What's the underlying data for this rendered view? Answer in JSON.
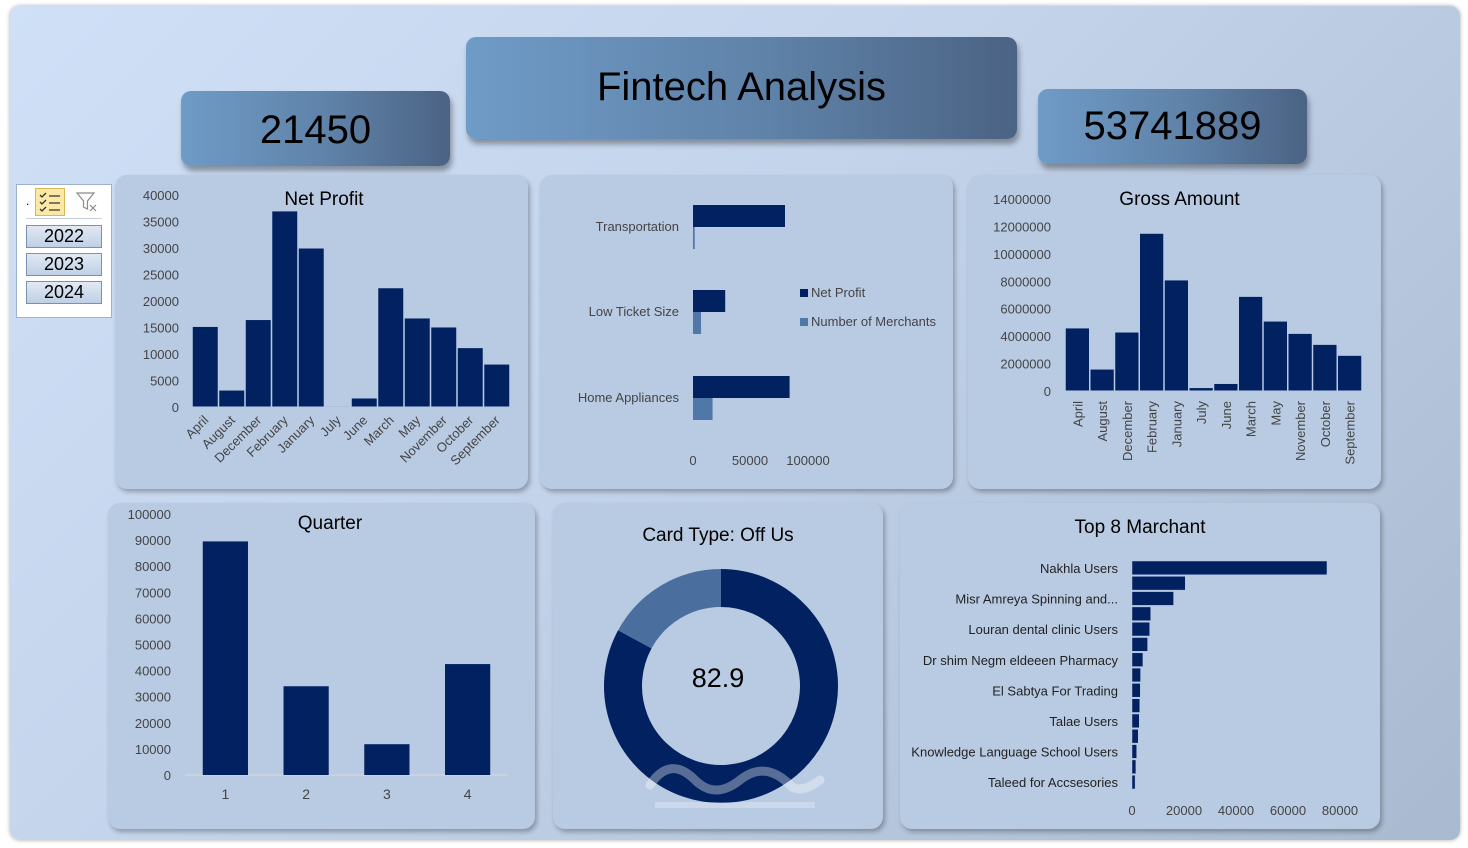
{
  "header": {
    "title": "Fintech Analysis",
    "kpi_left": "21450",
    "kpi_right": "53741889"
  },
  "slicer": {
    "icons": [
      "multi-select-icon",
      "clear-filter-icon"
    ],
    "items": [
      "2022",
      "2023",
      "2024"
    ]
  },
  "colors": {
    "bar": "#012160",
    "bar_light": "#4f77a8",
    "donut_dark": "#012160",
    "donut_light": "#4a6f9f"
  },
  "chart_data": [
    {
      "id": "net_profit",
      "type": "bar",
      "title": "Net Profit",
      "categories": [
        "April",
        "August",
        "December",
        "February",
        "January",
        "July",
        "June",
        "March",
        "May",
        "November",
        "October",
        "September"
      ],
      "values": [
        15200,
        3200,
        16500,
        37000,
        30000,
        200,
        1700,
        22500,
        16800,
        15100,
        11200,
        8100
      ],
      "ylim": [
        0,
        40000
      ],
      "yticks": [
        "0",
        "5000",
        "10000",
        "15000",
        "20000",
        "25000",
        "30000",
        "35000",
        "40000"
      ],
      "grid": false
    },
    {
      "id": "category",
      "type": "bar",
      "orientation": "horizontal",
      "categories": [
        "Transportation",
        "Low Ticket Size",
        "Home Appliances"
      ],
      "series": [
        {
          "name": "Net Profit",
          "values": [
            80000,
            28000,
            84000
          ]
        },
        {
          "name": "Number of Merchants",
          "values": [
            1500,
            7000,
            17000
          ]
        }
      ],
      "xlim": [
        0,
        100000
      ],
      "xticks": [
        "0",
        "50000",
        "100000"
      ],
      "legend": "right"
    },
    {
      "id": "gross_amount",
      "type": "bar",
      "title": "Gross Amount",
      "categories": [
        "April",
        "August",
        "December",
        "February",
        "January",
        "July",
        "June",
        "March",
        "May",
        "November",
        "October",
        "September"
      ],
      "values": [
        4600000,
        1600000,
        4300000,
        11500000,
        8100000,
        250000,
        550000,
        6900000,
        5100000,
        4200000,
        3400000,
        2600000
      ],
      "ylim": [
        0,
        14000000
      ],
      "yticks": [
        "0",
        "2000000",
        "4000000",
        "6000000",
        "8000000",
        "10000000",
        "12000000",
        "14000000"
      ],
      "grid": false
    },
    {
      "id": "quarter",
      "type": "bar",
      "title": "Quarter",
      "categories": [
        "1",
        "2",
        "3",
        "4"
      ],
      "values": [
        89500,
        34000,
        11800,
        42500
      ],
      "ylim": [
        0,
        100000
      ],
      "yticks": [
        "0",
        "10000",
        "20000",
        "30000",
        "40000",
        "50000",
        "60000",
        "70000",
        "80000",
        "90000",
        "100000"
      ],
      "grid": false
    },
    {
      "id": "card_type",
      "type": "pie",
      "title": "Card Type: Off Us",
      "center_label": "82.9",
      "values": [
        82.9,
        17.1
      ]
    },
    {
      "id": "top_merchants",
      "type": "bar",
      "orientation": "horizontal",
      "title": "Top 8 Marchant",
      "categories": [
        "Nakhla Users",
        "",
        "Misr Amreya Spinning and...",
        "",
        "Louran dental clinic Users",
        "",
        "Dr shim Negm eldeeen Pharmacy",
        "",
        "El Sabtya For Trading",
        "",
        "Talae Users",
        "",
        "Knowledge Language School Users",
        "",
        "Taleed for Accsesories"
      ],
      "values": [
        75000,
        20500,
        16000,
        7200,
        6800,
        6000,
        4200,
        3300,
        3200,
        3000,
        2800,
        2400,
        1800,
        1500,
        1200
      ],
      "xlim": [
        0,
        80000
      ],
      "xticks": [
        "0",
        "20000",
        "40000",
        "60000",
        "80000"
      ]
    }
  ]
}
